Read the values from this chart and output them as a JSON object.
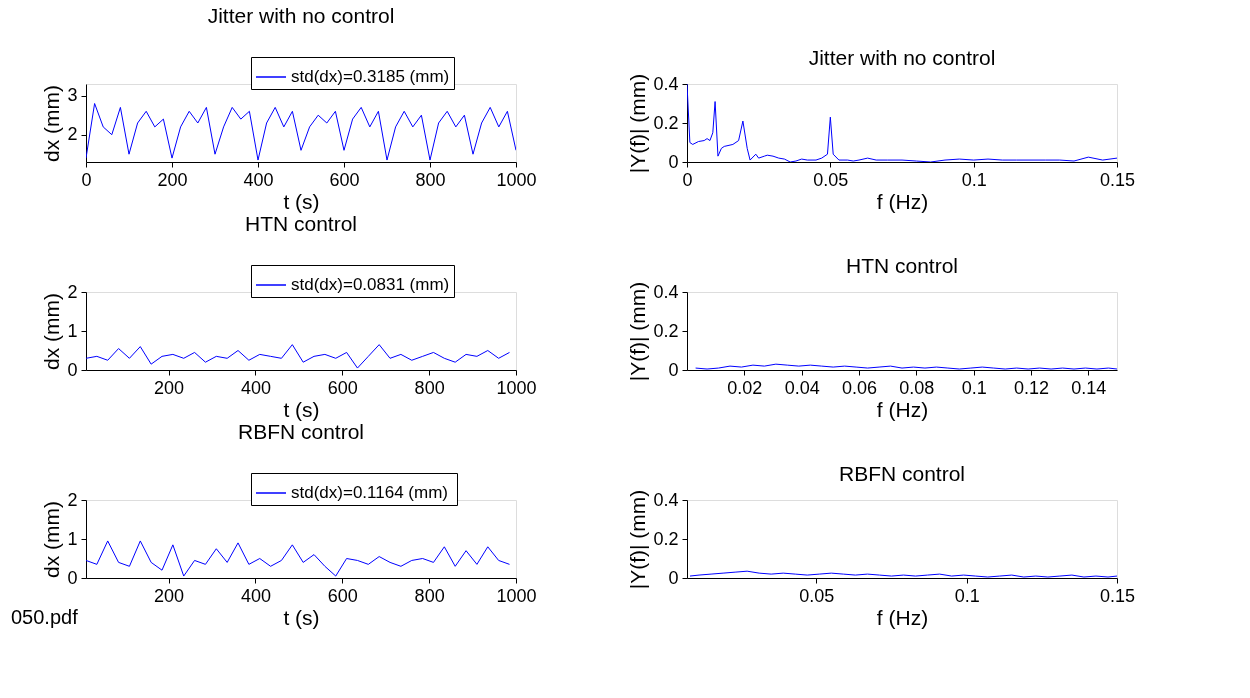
{
  "chart_data": [
    {
      "type": "line",
      "title": "Jitter with no control",
      "xlabel": "t (s)",
      "ylabel": "dx (mm)",
      "xlim": [
        0,
        1000
      ],
      "xticks": [
        0,
        200,
        400,
        600,
        800,
        1000
      ],
      "ylim": [
        1.3,
        3.3
      ],
      "yticks": [
        2,
        3
      ],
      "legend": "top right",
      "x": [
        0,
        20,
        40,
        60,
        80,
        100,
        120,
        140,
        160,
        180,
        200,
        220,
        240,
        260,
        280,
        300,
        320,
        340,
        360,
        380,
        400,
        420,
        440,
        460,
        480,
        500,
        520,
        540,
        560,
        580,
        600,
        620,
        640,
        660,
        680,
        700,
        720,
        740,
        760,
        780,
        800,
        820,
        840,
        860,
        880,
        900,
        920,
        940,
        960,
        980,
        1000
      ],
      "series": [
        {
          "name": "std(dx)=0.3185 (mm)",
          "color": "#0000ff",
          "values": [
            1.4,
            2.8,
            2.2,
            2.0,
            2.7,
            1.5,
            2.3,
            2.6,
            2.2,
            2.4,
            1.4,
            2.2,
            2.6,
            2.3,
            2.7,
            1.5,
            2.2,
            2.7,
            2.4,
            2.6,
            1.35,
            2.3,
            2.7,
            2.2,
            2.6,
            1.6,
            2.2,
            2.5,
            2.3,
            2.6,
            1.6,
            2.4,
            2.7,
            2.2,
            2.6,
            1.35,
            2.2,
            2.6,
            2.2,
            2.5,
            1.35,
            2.3,
            2.6,
            2.2,
            2.5,
            1.5,
            2.3,
            2.7,
            2.2,
            2.6,
            1.6
          ]
        }
      ]
    },
    {
      "type": "line",
      "title": "Jitter with no control",
      "xlabel": "f (Hz)",
      "ylabel": "|Y(f)| (mm)",
      "xlim": [
        0,
        0.15
      ],
      "xticks": [
        0,
        0.05,
        0.1,
        0.15
      ],
      "ylim": [
        0,
        0.4
      ],
      "yticks": [
        0,
        0.2,
        0.4
      ],
      "x": [
        0,
        0.001,
        0.002,
        0.004,
        0.006,
        0.007,
        0.008,
        0.009,
        0.0098,
        0.0108,
        0.012,
        0.013,
        0.016,
        0.018,
        0.0195,
        0.021,
        0.022,
        0.024,
        0.025,
        0.027,
        0.028,
        0.03,
        0.032,
        0.034,
        0.036,
        0.038,
        0.04,
        0.042,
        0.045,
        0.047,
        0.049,
        0.05,
        0.051,
        0.053,
        0.056,
        0.058,
        0.06,
        0.063,
        0.066,
        0.07,
        0.075,
        0.08,
        0.085,
        0.09,
        0.095,
        0.1,
        0.105,
        0.11,
        0.115,
        0.12,
        0.125,
        0.13,
        0.135,
        0.14,
        0.145,
        0.15
      ],
      "series": [
        {
          "color": "#0000ff",
          "values": [
            0.4,
            0.1,
            0.09,
            0.105,
            0.11,
            0.12,
            0.11,
            0.15,
            0.31,
            0.03,
            0.07,
            0.08,
            0.09,
            0.11,
            0.21,
            0.07,
            0.01,
            0.04,
            0.02,
            0.03,
            0.035,
            0.03,
            0.02,
            0.015,
            0.0,
            0.005,
            0.015,
            0.01,
            0.01,
            0.02,
            0.04,
            0.23,
            0.04,
            0.01,
            0.01,
            0.005,
            0.01,
            0.02,
            0.01,
            0.01,
            0.01,
            0.005,
            0.0,
            0.01,
            0.015,
            0.01,
            0.015,
            0.01,
            0.01,
            0.01,
            0.01,
            0.01,
            0.005,
            0.025,
            0.01,
            0.02
          ]
        }
      ]
    },
    {
      "type": "line",
      "title": "HTN  control",
      "xlabel": "t (s)",
      "ylabel": "dx (mm)",
      "xlim": [
        10,
        1000
      ],
      "xticks": [
        200,
        400,
        600,
        800,
        1000
      ],
      "ylim": [
        0,
        2
      ],
      "yticks": [
        0,
        1,
        2
      ],
      "legend": "top right",
      "x": [
        10,
        35,
        60,
        85,
        110,
        135,
        160,
        185,
        210,
        235,
        260,
        285,
        310,
        335,
        360,
        385,
        410,
        435,
        460,
        485,
        510,
        535,
        560,
        585,
        610,
        635,
        660,
        685,
        710,
        735,
        760,
        785,
        810,
        835,
        860,
        885,
        910,
        935,
        960,
        985
      ],
      "series": [
        {
          "name": "std(dx)=0.0831 (mm)",
          "color": "#0000ff",
          "values": [
            0.3,
            0.35,
            0.25,
            0.55,
            0.3,
            0.6,
            0.15,
            0.35,
            0.4,
            0.3,
            0.45,
            0.2,
            0.35,
            0.3,
            0.5,
            0.25,
            0.4,
            0.35,
            0.3,
            0.65,
            0.2,
            0.35,
            0.4,
            0.3,
            0.45,
            0.05,
            0.35,
            0.65,
            0.3,
            0.4,
            0.25,
            0.35,
            0.45,
            0.3,
            0.2,
            0.4,
            0.35,
            0.5,
            0.3,
            0.45
          ]
        }
      ]
    },
    {
      "type": "line",
      "title": "HTN control",
      "xlabel": "f (Hz)",
      "ylabel": "|Y(f)| (mm)",
      "xlim": [
        0,
        0.15
      ],
      "xticks": [
        0.02,
        0.04,
        0.06,
        0.08,
        0.1,
        0.12,
        0.14
      ],
      "ylim": [
        0,
        0.4
      ],
      "yticks": [
        0,
        0.2,
        0.4
      ],
      "x": [
        0.003,
        0.007,
        0.011,
        0.015,
        0.019,
        0.023,
        0.027,
        0.031,
        0.035,
        0.039,
        0.043,
        0.047,
        0.051,
        0.055,
        0.059,
        0.063,
        0.067,
        0.071,
        0.075,
        0.079,
        0.083,
        0.087,
        0.091,
        0.095,
        0.099,
        0.103,
        0.107,
        0.111,
        0.115,
        0.119,
        0.123,
        0.127,
        0.131,
        0.135,
        0.139,
        0.143,
        0.147,
        0.15
      ],
      "series": [
        {
          "color": "#0000ff",
          "values": [
            0.01,
            0.005,
            0.01,
            0.02,
            0.015,
            0.025,
            0.02,
            0.03,
            0.025,
            0.02,
            0.025,
            0.02,
            0.015,
            0.02,
            0.015,
            0.01,
            0.015,
            0.02,
            0.01,
            0.015,
            0.01,
            0.015,
            0.01,
            0.005,
            0.01,
            0.015,
            0.01,
            0.005,
            0.01,
            0.005,
            0.01,
            0.005,
            0.01,
            0.005,
            0.01,
            0.005,
            0.01,
            0.005
          ]
        }
      ]
    },
    {
      "type": "line",
      "title": "RBFN control",
      "xlabel": "t (s)",
      "ylabel": "dx (mm)",
      "xlim": [
        10,
        1000
      ],
      "xticks": [
        200,
        400,
        600,
        800,
        1000
      ],
      "ylim": [
        0,
        2
      ],
      "yticks": [
        0,
        1,
        2
      ],
      "legend": "top right",
      "annotations": [
        "050.pdf"
      ],
      "x": [
        10,
        35,
        60,
        85,
        110,
        135,
        160,
        185,
        210,
        235,
        260,
        285,
        310,
        335,
        360,
        385,
        410,
        435,
        460,
        485,
        510,
        535,
        560,
        585,
        610,
        635,
        660,
        685,
        710,
        735,
        760,
        785,
        810,
        835,
        860,
        885,
        910,
        935,
        960,
        985
      ],
      "series": [
        {
          "name": "std(dx)=0.1164  (mm)",
          "color": "#0000ff",
          "values": [
            0.45,
            0.35,
            0.95,
            0.4,
            0.3,
            0.95,
            0.4,
            0.2,
            0.85,
            0.05,
            0.45,
            0.35,
            0.75,
            0.4,
            0.9,
            0.35,
            0.5,
            0.3,
            0.45,
            0.85,
            0.4,
            0.6,
            0.3,
            0.05,
            0.5,
            0.45,
            0.35,
            0.55,
            0.4,
            0.3,
            0.45,
            0.5,
            0.4,
            0.8,
            0.3,
            0.7,
            0.35,
            0.8,
            0.45,
            0.35
          ]
        }
      ]
    },
    {
      "type": "line",
      "title": "RBFN control",
      "xlabel": "f (Hz)",
      "ylabel": "|Y(f)| (mm)",
      "xlim": [
        0.007,
        0.15
      ],
      "xticks": [
        0.05,
        0.1,
        0.15
      ],
      "ylim": [
        0,
        0.4
      ],
      "yticks": [
        0,
        0.2,
        0.4
      ],
      "x": [
        0.008,
        0.011,
        0.015,
        0.019,
        0.023,
        0.027,
        0.031,
        0.035,
        0.039,
        0.043,
        0.047,
        0.051,
        0.055,
        0.059,
        0.063,
        0.067,
        0.071,
        0.075,
        0.079,
        0.083,
        0.087,
        0.091,
        0.095,
        0.099,
        0.103,
        0.107,
        0.111,
        0.115,
        0.119,
        0.123,
        0.127,
        0.131,
        0.135,
        0.139,
        0.143,
        0.147,
        0.15
      ],
      "series": [
        {
          "color": "#0000ff",
          "values": [
            0.01,
            0.015,
            0.02,
            0.025,
            0.03,
            0.035,
            0.025,
            0.02,
            0.025,
            0.02,
            0.015,
            0.02,
            0.025,
            0.02,
            0.015,
            0.02,
            0.015,
            0.01,
            0.015,
            0.01,
            0.015,
            0.02,
            0.01,
            0.015,
            0.01,
            0.005,
            0.01,
            0.015,
            0.005,
            0.01,
            0.005,
            0.01,
            0.015,
            0.005,
            0.01,
            0.005,
            0.01
          ]
        }
      ]
    }
  ]
}
